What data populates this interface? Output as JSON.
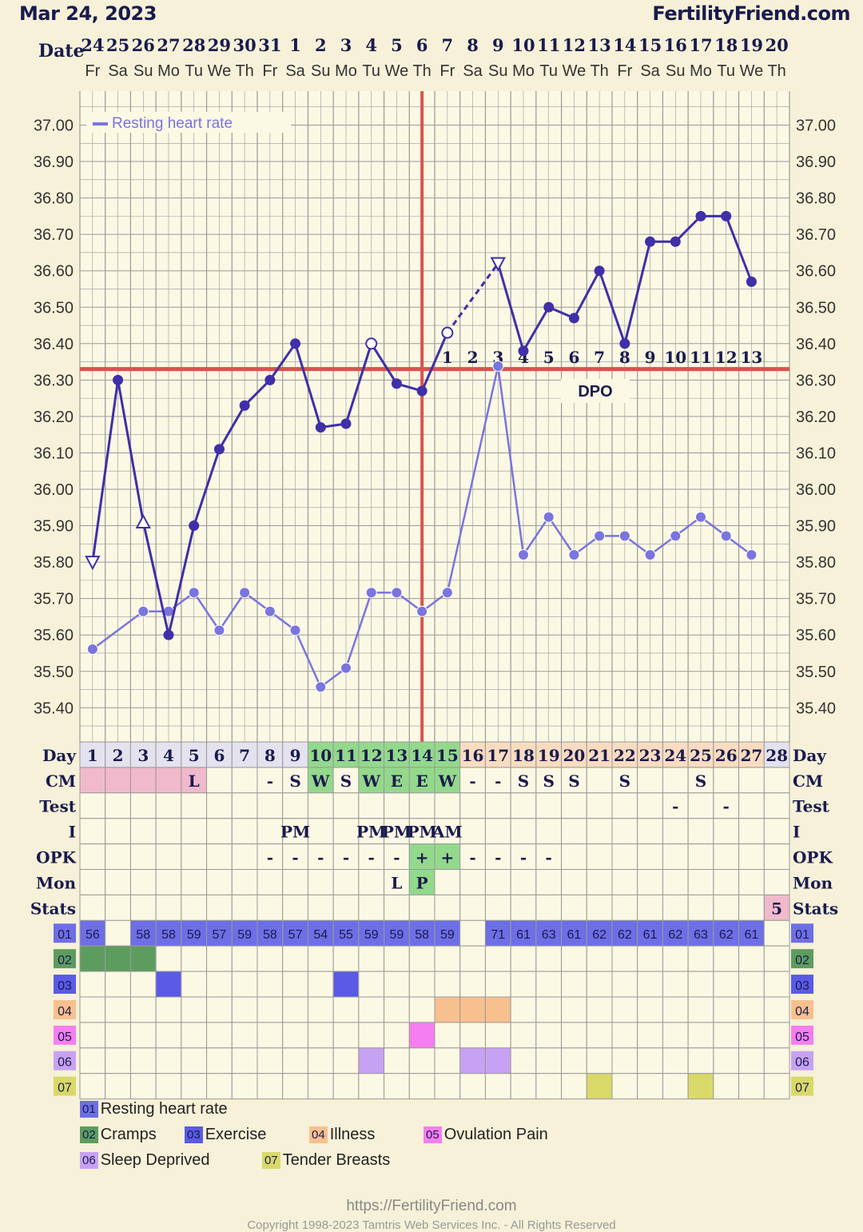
{
  "header": {
    "date": "Mar 24, 2023",
    "site": "FertilityFriend.com"
  },
  "colors": {
    "background": "#f6f1d8",
    "plot_bg": "#fbf8e4",
    "grid": "#9a9a9a",
    "temp_line": "#3f2fa8",
    "rhr_line": "#7a74df",
    "coverline": "#d9534f",
    "cm_pink": "#f1b9cc",
    "fertile_green": "#93d98c",
    "peach": "#f9dcc0",
    "lilac": "#e3e0f0",
    "cramps": "#5d9c5f",
    "exercise": "#5a5ae6",
    "illness": "#f9c08f",
    "ovulation_pain": "#f57ef0",
    "sleep_deprived": "#c8a2f2",
    "tender_breasts": "#d9d96a"
  },
  "chart_data": {
    "type": "line",
    "title": "",
    "header_label": "Date",
    "dates": [
      "24",
      "25",
      "26",
      "27",
      "28",
      "29",
      "30",
      "31",
      "1",
      "2",
      "3",
      "4",
      "5",
      "6",
      "7",
      "8",
      "9",
      "10",
      "11",
      "12",
      "13",
      "14",
      "15",
      "16",
      "17",
      "18",
      "19",
      "20"
    ],
    "weekdays": [
      "Fr",
      "Sa",
      "Su",
      "Mo",
      "Tu",
      "We",
      "Th",
      "Fr",
      "Sa",
      "Su",
      "Mo",
      "Tu",
      "We",
      "Th",
      "Fr",
      "Sa",
      "Su",
      "Mo",
      "Tu",
      "We",
      "Th",
      "Fr",
      "Sa",
      "Su",
      "Mo",
      "Tu",
      "We",
      "Th"
    ],
    "cycle_days": [
      "1",
      "2",
      "3",
      "4",
      "5",
      "6",
      "7",
      "8",
      "9",
      "10",
      "11",
      "12",
      "13",
      "14",
      "15",
      "16",
      "17",
      "18",
      "19",
      "20",
      "21",
      "22",
      "23",
      "24",
      "25",
      "26",
      "27",
      "28"
    ],
    "y_ticks": [
      "37.00",
      "36.90",
      "36.80",
      "36.70",
      "36.60",
      "36.50",
      "36.40",
      "36.30",
      "36.20",
      "36.10",
      "36.00",
      "35.90",
      "35.80",
      "35.70",
      "35.60",
      "35.50",
      "35.40"
    ],
    "ylim": [
      35.4,
      37.0
    ],
    "coverline": 36.33,
    "ovulation_day": 14,
    "series": [
      {
        "values": [
          35.8,
          36.3,
          35.91,
          35.6,
          35.9,
          36.11,
          36.23,
          36.3,
          36.4,
          36.17,
          36.18,
          36.4,
          36.29,
          36.27,
          36.43,
          null,
          36.62,
          36.38,
          36.5,
          36.47,
          36.6,
          36.4,
          36.68,
          36.68,
          36.75,
          36.75,
          36.57,
          null
        ],
        "markers": [
          "tri-down",
          "dot",
          "tri-up",
          "dot",
          "dot",
          "dot",
          "dot",
          "dot",
          "dot",
          "dot",
          "dot",
          "open",
          "dot",
          "dot",
          "open",
          null,
          "tri-down",
          "dot",
          "dot",
          "dot",
          "dot",
          "dot",
          "dot",
          "dot",
          "dot",
          "dot",
          "dot",
          null
        ]
      },
      {
        "name": "Resting heart rate",
        "values": [
          56,
          null,
          58,
          58,
          59,
          57,
          59,
          58,
          57,
          54,
          55,
          59,
          59,
          58,
          59,
          null,
          71,
          61,
          63,
          61,
          62,
          62,
          61,
          62,
          63,
          62,
          61,
          null
        ]
      }
    ],
    "dpo_label": "DPO",
    "dpo": [
      {
        "day": 15,
        "n": "1"
      },
      {
        "day": 16,
        "n": "2"
      },
      {
        "day": 17,
        "n": "3"
      },
      {
        "day": 18,
        "n": "4"
      },
      {
        "day": 19,
        "n": "5"
      },
      {
        "day": 20,
        "n": "6"
      },
      {
        "day": 21,
        "n": "7"
      },
      {
        "day": 22,
        "n": "8"
      },
      {
        "day": 23,
        "n": "9"
      },
      {
        "day": 24,
        "n": "10"
      },
      {
        "day": 25,
        "n": "11"
      },
      {
        "day": 26,
        "n": "12"
      },
      {
        "day": 27,
        "n": "13"
      }
    ],
    "rows": {
      "day": {
        "label": "Day"
      },
      "cm": {
        "label": "CM",
        "values": [
          "",
          "",
          "",
          "",
          "L",
          "",
          "",
          "-",
          "S",
          "W",
          "S",
          "W",
          "E",
          "E",
          "W",
          "-",
          "-",
          "S",
          "S",
          "S",
          "",
          "S",
          "",
          "",
          "S",
          "",
          "",
          ""
        ]
      },
      "test": {
        "label": "Test",
        "values": [
          "",
          "",
          "",
          "",
          "",
          "",
          "",
          "",
          "",
          "",
          "",
          "",
          "",
          "",
          "",
          "",
          "",
          "",
          "",
          "",
          "",
          "",
          "",
          "-",
          "",
          "-",
          "",
          ""
        ]
      },
      "i": {
        "label": "I",
        "values": [
          "",
          "",
          "",
          "",
          "",
          "",
          "",
          "",
          "PM",
          "",
          "",
          "PM",
          "PM",
          "PM",
          "AM",
          "",
          "",
          "",
          "",
          "",
          "",
          "",
          "",
          "",
          "",
          "",
          "",
          ""
        ]
      },
      "opk": {
        "label": "OPK",
        "values": [
          "",
          "",
          "",
          "",
          "",
          "",
          "",
          "-",
          "-",
          "-",
          "-",
          "-",
          "-",
          "+",
          "+",
          "-",
          "-",
          "-",
          "-",
          "",
          "",
          "",
          "",
          "",
          "",
          "",
          "",
          ""
        ]
      },
      "mon": {
        "label": "Mon",
        "values": [
          "",
          "",
          "",
          "",
          "",
          "",
          "",
          "",
          "",
          "",
          "",
          "",
          "L",
          "P",
          "",
          "",
          "",
          "",
          "",
          "",
          "",
          "",
          "",
          "",
          "",
          "",
          "",
          ""
        ]
      },
      "stats": {
        "label": "Stats",
        "values": [
          "",
          "",
          "",
          "",
          "",
          "",
          "",
          "",
          "",
          "",
          "",
          "",
          "",
          "",
          "",
          "",
          "",
          "",
          "",
          "",
          "",
          "",
          "",
          "",
          "",
          "",
          "",
          "5"
        ]
      }
    },
    "symptom_rows": [
      {
        "code": "01",
        "days": [
          1,
          3,
          4,
          5,
          6,
          7,
          8,
          9,
          10,
          11,
          12,
          13,
          14,
          15,
          17,
          18,
          19,
          20,
          21,
          22,
          23,
          24,
          25,
          26,
          27
        ]
      },
      {
        "code": "02",
        "days": [
          1,
          2,
          3
        ]
      },
      {
        "code": "03",
        "days": [
          4,
          11
        ]
      },
      {
        "code": "04",
        "days": [
          15,
          16,
          17
        ]
      },
      {
        "code": "05",
        "days": [
          14
        ]
      },
      {
        "code": "06",
        "days": [
          12,
          16,
          17
        ]
      },
      {
        "code": "07",
        "days": [
          21,
          25
        ]
      }
    ],
    "legend": [
      {
        "code": "01",
        "label": "Resting heart rate"
      },
      {
        "code": "02",
        "label": "Cramps"
      },
      {
        "code": "03",
        "label": "Exercise"
      },
      {
        "code": "04",
        "label": "Illness"
      },
      {
        "code": "05",
        "label": "Ovulation Pain"
      },
      {
        "code": "06",
        "label": "Sleep Deprived"
      },
      {
        "code": "07",
        "label": "Tender Breasts"
      }
    ]
  },
  "footer": {
    "url": "https://FertilityFriend.com",
    "copyright": "Copyright 1998-2023 Tamtris Web Services Inc. - All Rights Reserved"
  }
}
